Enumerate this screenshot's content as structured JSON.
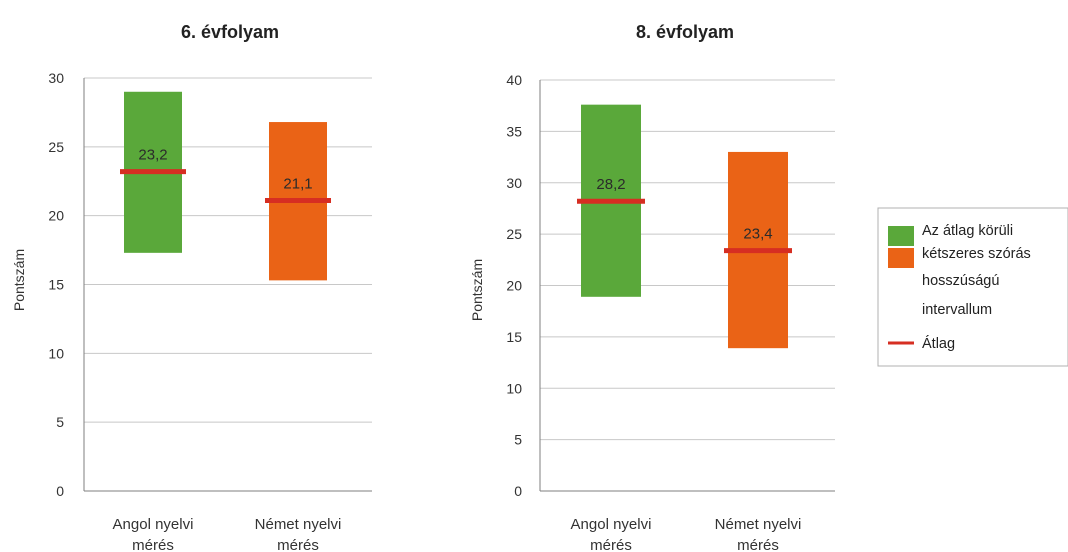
{
  "colors": {
    "green": "#5aa83a",
    "orange": "#ea6316",
    "mean_line": "#d62e22",
    "grid": "#c8c8c8",
    "axis": "#7f7f7f"
  },
  "chart_data": [
    {
      "type": "bar",
      "title": "6. évfolyam",
      "ylabel": "Pontszám",
      "ylim": [
        0,
        30
      ],
      "yticks": [
        0,
        5,
        10,
        15,
        20,
        25,
        30
      ],
      "categories": [
        "Angol nyelvi mérés",
        "Német nyelvi mérés"
      ],
      "category_lines": [
        [
          "Angol nyelvi",
          "mérés"
        ],
        [
          "Német nyelvi",
          "mérés"
        ]
      ],
      "interval_low": [
        17.3,
        15.3
      ],
      "interval_high": [
        29.0,
        26.8
      ],
      "mean": [
        23.2,
        21.1
      ],
      "mean_labels": [
        "23,2",
        "21,1"
      ],
      "bar_colors": [
        "green",
        "orange"
      ]
    },
    {
      "type": "bar",
      "title": "8. évfolyam",
      "ylabel": "Pontszám",
      "ylim": [
        0,
        40
      ],
      "yticks": [
        0,
        5,
        10,
        15,
        20,
        25,
        30,
        35,
        40
      ],
      "categories": [
        "Angol nyelvi mérés",
        "Német nyelvi mérés"
      ],
      "category_lines": [
        [
          "Angol nyelvi",
          "mérés"
        ],
        [
          "Német nyelvi",
          "mérés"
        ]
      ],
      "interval_low": [
        18.9,
        13.9
      ],
      "interval_high": [
        37.6,
        33.0
      ],
      "mean": [
        28.2,
        23.4
      ],
      "mean_labels": [
        "28,2",
        "23,4"
      ],
      "bar_colors": [
        "green",
        "orange"
      ]
    }
  ],
  "legend": {
    "interval_lines": [
      "Az átlag körüli",
      "kétszeres szórás",
      "hosszúságú",
      "intervallum"
    ],
    "mean_label": "Átlag"
  }
}
